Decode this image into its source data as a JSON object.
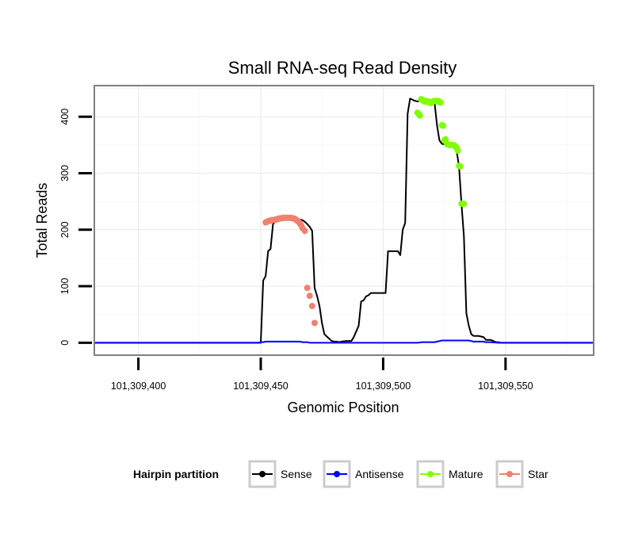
{
  "chart_data": {
    "type": "line",
    "title": "Small RNA-seq Read Density",
    "xlabel": "Genomic Position",
    "ylabel": "Total Reads",
    "xlim": [
      101309382,
      101309586
    ],
    "ylim": [
      -22,
      455
    ],
    "x_ticks": [
      101309400,
      101309450,
      101309500,
      101309550
    ],
    "x_tick_labels": [
      "101,309,400",
      "101,309,450",
      "101,309,500",
      "101,309,550"
    ],
    "y_ticks": [
      0,
      100,
      200,
      300,
      400
    ],
    "y_tick_labels": [
      "0",
      "100",
      "200",
      "300",
      "400"
    ],
    "legend": {
      "title": "Hairpin partition",
      "position": "bottom",
      "entries": [
        {
          "name": "Sense",
          "color": "#000000"
        },
        {
          "name": "Antisense",
          "color": "#0000ff"
        },
        {
          "name": "Mature",
          "color": "#7fff00"
        },
        {
          "name": "Star",
          "color": "#f08070"
        }
      ]
    },
    "series": [
      {
        "name": "Sense",
        "color": "#000000",
        "style": "line",
        "x": [
          101309382,
          101309449,
          101309450,
          101309451,
          101309452,
          101309453,
          101309454,
          101309455,
          101309456,
          101309457,
          101309458,
          101309460,
          101309462,
          101309465,
          101309467,
          101309468,
          101309469,
          101309470,
          101309471,
          101309472,
          101309473,
          101309474,
          101309475,
          101309476,
          101309479,
          101309480,
          101309481,
          101309482,
          101309483,
          101309485,
          101309486,
          101309487,
          101309488,
          101309489,
          101309490,
          101309491,
          101309492,
          101309493,
          101309494,
          101309495,
          101309496,
          101309497,
          101309498,
          101309499,
          101309501,
          101309502,
          101309506,
          101309507,
          101309508,
          101309509,
          101309510,
          101309511,
          101309512,
          101309513,
          101309514,
          101309515,
          101309516,
          101309517,
          101309519,
          101309521,
          101309522,
          101309523,
          101309524,
          101309526,
          101309528,
          101309530,
          101309531,
          101309532,
          101309533,
          101309534,
          101309535,
          101309536,
          101309537,
          101309538,
          101309539,
          101309540,
          101309541,
          101309542,
          101309543,
          101309544,
          101309545,
          101309546,
          101309547,
          101309548,
          101309549,
          101309550,
          101309586
        ],
        "y": [
          0,
          0,
          0,
          110,
          118,
          162,
          166,
          210,
          214,
          216,
          218,
          220,
          220,
          219,
          217,
          214,
          210,
          205,
          198,
          97,
          83,
          65,
          35,
          15,
          3,
          2,
          2,
          1,
          2,
          3,
          3,
          3,
          10,
          20,
          30,
          73,
          75,
          82,
          84,
          88,
          88,
          88,
          88,
          88,
          88,
          162,
          162,
          155,
          200,
          212,
          405,
          432,
          430,
          428,
          427,
          428,
          426,
          424,
          427,
          425,
          385,
          358,
          352,
          350,
          348,
          340,
          312,
          246,
          188,
          52,
          30,
          15,
          12,
          12,
          12,
          11,
          10,
          5,
          5,
          5,
          3,
          1,
          1,
          0,
          0,
          0,
          0
        ]
      },
      {
        "name": "Antisense",
        "color": "#0000ff",
        "style": "line",
        "x": [
          101309382,
          101309449,
          101309450,
          101309451,
          101309452,
          101309453,
          101309454,
          101309466,
          101309467,
          101309468,
          101309469,
          101309470,
          101309471,
          101309472,
          101309473,
          101309514,
          101309516,
          101309517,
          101309521,
          101309522,
          101309523,
          101309524,
          101309525,
          101309535,
          101309536,
          101309537,
          101309538,
          101309541,
          101309542,
          101309543,
          101309544,
          101309547,
          101309550,
          101309586
        ],
        "y": [
          0,
          0,
          1,
          1,
          2,
          2,
          2,
          2,
          1,
          1,
          1,
          0,
          0,
          0,
          0,
          0,
          1,
          1,
          1,
          2,
          3,
          4,
          4,
          4,
          3,
          2,
          2,
          2,
          1,
          1,
          1,
          0,
          0,
          0
        ]
      },
      {
        "name": "Mature",
        "color": "#7fff00",
        "style": "points",
        "x": [
          101309514,
          101309514.5,
          101309515,
          101309515.5,
          101309516,
          101309516.5,
          101309517,
          101309517.5,
          101309518,
          101309518.5,
          101309519,
          101309519.5,
          101309520,
          101309520.5,
          101309521,
          101309521.5,
          101309522,
          101309522.5,
          101309523,
          101309523.5,
          101309524,
          101309524.5,
          101309525,
          101309525.5,
          101309526,
          101309526.5,
          101309527,
          101309527.5,
          101309528,
          101309528.5,
          101309529,
          101309529.5,
          101309530,
          101309530.5,
          101309531,
          101309531.5,
          101309532,
          101309532.5,
          101309533
        ],
        "y": [
          407,
          405,
          402,
          431,
          430,
          428,
          427,
          428,
          426,
          427,
          425,
          424,
          426,
          427,
          428,
          428,
          427,
          428,
          426,
          425,
          385,
          384,
          358,
          360,
          352,
          351,
          350,
          350,
          350,
          350,
          349,
          348,
          345,
          340,
          313,
          312,
          246,
          246,
          246
        ]
      },
      {
        "name": "Star",
        "color": "#f08070",
        "style": "points",
        "x": [
          101309452,
          101309452.5,
          101309453,
          101309453.5,
          101309454,
          101309454.5,
          101309455,
          101309455.5,
          101309456,
          101309456.5,
          101309457,
          101309457.5,
          101309458,
          101309458.5,
          101309459,
          101309459.5,
          101309460,
          101309460.5,
          101309461,
          101309461.5,
          101309462,
          101309462.5,
          101309463,
          101309463.5,
          101309464,
          101309464.5,
          101309465,
          101309465.5,
          101309466,
          101309466.5,
          101309467,
          101309468,
          101309469,
          101309470,
          101309471,
          101309472
        ],
        "y": [
          213,
          214,
          215,
          216,
          216,
          217,
          217,
          217,
          218,
          218,
          219,
          220,
          220,
          220,
          221,
          221,
          221,
          221,
          221,
          221,
          221,
          221,
          220,
          220,
          219,
          217,
          216,
          214,
          211,
          208,
          203,
          198,
          97,
          83,
          65,
          35
        ]
      }
    ]
  }
}
